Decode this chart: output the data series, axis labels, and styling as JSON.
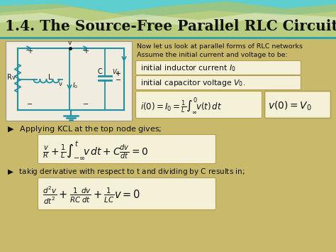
{
  "title": "1.4. The Source-Free Parallel RLC Circuits",
  "body_bg": "#c8b96b",
  "header_teal": "#5ecece",
  "header_tan": "#d4c878",
  "desc_line1": "Now let us look at parallel forms of RLC networks",
  "desc_line2": "Assume the initial current and voltage to be:",
  "init_ind": "initial inductor current $I_0$",
  "init_cap": "initial capacitor voltage $V_0$.",
  "box_bg": "#f5f0d8",
  "box_border": "#b0a050",
  "wire_color": "#2090a0",
  "text_color": "#1a1a1a"
}
